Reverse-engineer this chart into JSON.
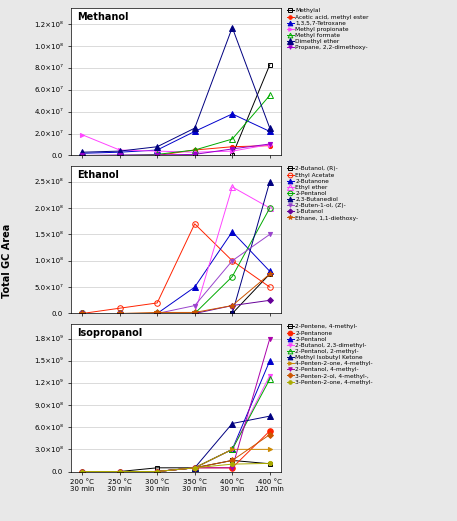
{
  "x_labels": [
    "200 °C\n30 min",
    "250 °C\n30 min",
    "300 °C\n30 min",
    "350 °C\n30 min",
    "400 °C\n30 min",
    "400 °C\n120 min"
  ],
  "x_positions": [
    0,
    1,
    2,
    3,
    4,
    5
  ],
  "methanol_series": [
    {
      "label": "Methylal",
      "color": "#000000",
      "marker": "s",
      "markersize": 3,
      "linestyle": "-",
      "mfc": "none",
      "data": [
        0,
        0,
        0,
        0,
        0,
        83000000.0
      ]
    },
    {
      "label": "Acetic acid, methyl ester",
      "color": "#ff2200",
      "marker": "o",
      "markersize": 3,
      "linestyle": "-",
      "mfc": "#ff2200",
      "data": [
        0,
        0,
        0,
        5000000.0,
        8000000.0,
        9000000.0
      ]
    },
    {
      "label": "1,3,5,7-Tetroxane",
      "color": "#0000cc",
      "marker": "^",
      "markersize": 4,
      "linestyle": "-",
      "mfc": "#0000cc",
      "data": [
        2000000.0,
        3000000.0,
        5000000.0,
        22000000.0,
        38000000.0,
        22000000.0
      ]
    },
    {
      "label": "Methyl propionate",
      "color": "#ff44ff",
      "marker": ">",
      "markersize": 3,
      "linestyle": "-",
      "mfc": "#ff44ff",
      "data": [
        19000000.0,
        5000000.0,
        4000000.0,
        3000000.0,
        4000000.0,
        10000000.0
      ]
    },
    {
      "label": "Methyl formate",
      "color": "#00aa00",
      "marker": "^",
      "markersize": 4,
      "linestyle": "-",
      "mfc": "none",
      "data": [
        0,
        0,
        1000000.0,
        5000000.0,
        15000000.0,
        55000000.0
      ]
    },
    {
      "label": "Dimethyl ether",
      "color": "#000080",
      "marker": "^",
      "markersize": 5,
      "linestyle": "-",
      "mfc": "#000080",
      "data": [
        3000000.0,
        4000000.0,
        8000000.0,
        25000000.0,
        117000000.0,
        25000000.0
      ]
    },
    {
      "label": "Propane, 2,2-dimethoxy-",
      "color": "#9900cc",
      "marker": "v",
      "markersize": 3,
      "linestyle": "-",
      "mfc": "#9900cc",
      "data": [
        0,
        500000.0,
        500000.0,
        1000000.0,
        6000000.0,
        10500000.0
      ]
    }
  ],
  "ethanol_series": [
    {
      "label": "2-Butanol, (R)-",
      "color": "#000000",
      "marker": "s",
      "markersize": 3,
      "linestyle": "-",
      "mfc": "none",
      "data": [
        0,
        0,
        0,
        0,
        0,
        75000000.0
      ]
    },
    {
      "label": "Ethyl Acetate",
      "color": "#ff2200",
      "marker": "o",
      "markersize": 4,
      "linestyle": "-",
      "mfc": "none",
      "data": [
        0,
        10000000.0,
        20000000.0,
        170000000.0,
        100000000.0,
        50000000.0
      ]
    },
    {
      "label": "2-Butanone",
      "color": "#0000cc",
      "marker": "^",
      "markersize": 4,
      "linestyle": "-",
      "mfc": "#0000cc",
      "data": [
        0,
        0,
        0,
        50000000.0,
        155000000.0,
        80000000.0
      ]
    },
    {
      "label": "Ethyl ether",
      "color": "#ff44ff",
      "marker": "^",
      "markersize": 5,
      "linestyle": "-",
      "mfc": "none",
      "data": [
        0,
        0,
        0,
        0,
        240000000.0,
        200000000.0
      ]
    },
    {
      "label": "2-Pentanol",
      "color": "#00aa00",
      "marker": "o",
      "markersize": 4,
      "linestyle": "-",
      "mfc": "none",
      "data": [
        0,
        0,
        0,
        0,
        70000000.0,
        200000000.0
      ]
    },
    {
      "label": "2,3-Butanediol",
      "color": "#000080",
      "marker": "^",
      "markersize": 4,
      "linestyle": "-",
      "mfc": "#000080",
      "data": [
        0,
        0,
        0,
        0,
        0,
        250000000.0
      ]
    },
    {
      "label": "2-Buten-1-ol, (Z)-",
      "color": "#9944cc",
      "marker": "v",
      "markersize": 3,
      "linestyle": "-",
      "mfc": "#9944cc",
      "data": [
        0,
        0,
        0,
        15000000.0,
        100000000.0,
        150000000.0
      ]
    },
    {
      "label": "1-Butanol",
      "color": "#660099",
      "marker": "D",
      "markersize": 3,
      "linestyle": "-",
      "mfc": "#660099",
      "data": [
        0,
        0,
        0,
        0,
        15000000.0,
        25000000.0
      ]
    },
    {
      "label": "Ethane, 1,1-diethoxy-",
      "color": "#cc5500",
      "marker": "*",
      "markersize": 4,
      "linestyle": "-",
      "mfc": "#cc5500",
      "data": [
        0,
        0,
        2000000.0,
        2000000.0,
        15000000.0,
        75000000.0
      ]
    }
  ],
  "isopropanol_series": [
    {
      "label": "2-Pentene, 4-methyl-",
      "color": "#000000",
      "marker": "s",
      "markersize": 3,
      "linestyle": "-",
      "mfc": "none",
      "data": [
        0,
        0,
        50000000.0,
        50000000.0,
        150000000.0,
        105000000.0
      ]
    },
    {
      "label": "2-Pentanone",
      "color": "#ff2200",
      "marker": "o",
      "markersize": 4,
      "linestyle": "-",
      "mfc": "#ff2200",
      "data": [
        0,
        0,
        0,
        50000000.0,
        50000000.0,
        550000000.0
      ]
    },
    {
      "label": "2-Pentanol",
      "color": "#0000cc",
      "marker": "^",
      "markersize": 4,
      "linestyle": "-",
      "mfc": "#0000cc",
      "data": [
        0,
        0,
        0,
        50000000.0,
        300000000.0,
        1500000000.0
      ]
    },
    {
      "label": "2-Butanol, 2,3-dimethyl-",
      "color": "#ff44ff",
      "marker": "v",
      "markersize": 3,
      "linestyle": "-",
      "mfc": "#ff44ff",
      "data": [
        0,
        0,
        0,
        50000000.0,
        300000000.0,
        1300000000.0
      ]
    },
    {
      "label": "2-Pentanol, 2-methyl-",
      "color": "#00aa00",
      "marker": "^",
      "markersize": 4,
      "linestyle": "-",
      "mfc": "none",
      "data": [
        0,
        0,
        0,
        50000000.0,
        300000000.0,
        1250000000.0
      ]
    },
    {
      "label": "Methyl Isobutyl Ketone",
      "color": "#000080",
      "marker": "^",
      "markersize": 4,
      "linestyle": "-",
      "mfc": "#000080",
      "data": [
        0,
        0,
        0,
        50000000.0,
        650000000.0,
        750000000.0
      ]
    },
    {
      "label": "4-Penten-2-one, 4-methyl-",
      "color": "#cc8800",
      "marker": ">",
      "markersize": 3,
      "linestyle": "-",
      "mfc": "#cc8800",
      "data": [
        0,
        0,
        0,
        50000000.0,
        300000000.0,
        300000000.0
      ]
    },
    {
      "label": "2-Pentanol, 4-methyl-",
      "color": "#aa00aa",
      "marker": "v",
      "markersize": 3,
      "linestyle": "-",
      "mfc": "#aa00aa",
      "data": [
        0,
        0,
        0,
        50000000.0,
        50000000.0,
        1800000000.0
      ]
    },
    {
      "label": "3-Penten-2-ol, 4-methyl-,",
      "color": "#cc5500",
      "marker": "D",
      "markersize": 3,
      "linestyle": "-",
      "mfc": "#cc5500",
      "data": [
        0,
        0,
        0,
        50000000.0,
        150000000.0,
        500000000.0
      ]
    },
    {
      "label": "3-Penten-2-one, 4-methyl-",
      "color": "#aaaa00",
      "marker": "o",
      "markersize": 3,
      "linestyle": "-",
      "mfc": "#aaaa00",
      "data": [
        0,
        0,
        0,
        50000000.0,
        100000000.0,
        110000000.0
      ]
    }
  ],
  "methanol_yticks": [
    0.0,
    20000000.0,
    40000000.0,
    60000000.0,
    80000000.0,
    100000000.0,
    120000000.0
  ],
  "methanol_ylabels": [
    "0.0",
    "2.0×10⁷",
    "4.0×10⁷",
    "6.0×10⁷",
    "8.0×10⁷",
    "1.0×10⁸",
    "1.2×10⁸"
  ],
  "methanol_ylim": [
    0,
    135000000.0
  ],
  "ethanol_yticks": [
    0.0,
    50000000.0,
    100000000.0,
    150000000.0,
    200000000.0,
    250000000.0
  ],
  "ethanol_ylabels": [
    "0.0",
    "5.0×10⁷",
    "1.0×10⁸",
    "1.5×10⁸",
    "2.0×10⁸",
    "2.5×10⁸"
  ],
  "ethanol_ylim": [
    0,
    280000000.0
  ],
  "isopropanol_yticks": [
    0.0,
    300000000.0,
    600000000.0,
    900000000.0,
    1200000000.0,
    1500000000.0,
    1800000000.0
  ],
  "isopropanol_ylabels": [
    "0.0",
    "3.0×10⁸",
    "6.0×10⁸",
    "9.0×10⁸",
    "1.2×10⁹",
    "1.5×10⁹",
    "1.8×10⁹"
  ],
  "isopropanol_ylim": [
    0,
    2000000000.0
  ],
  "ylabel": "Total GC Area",
  "background_color": "#e8e8e8",
  "panel_bg": "#ffffff"
}
